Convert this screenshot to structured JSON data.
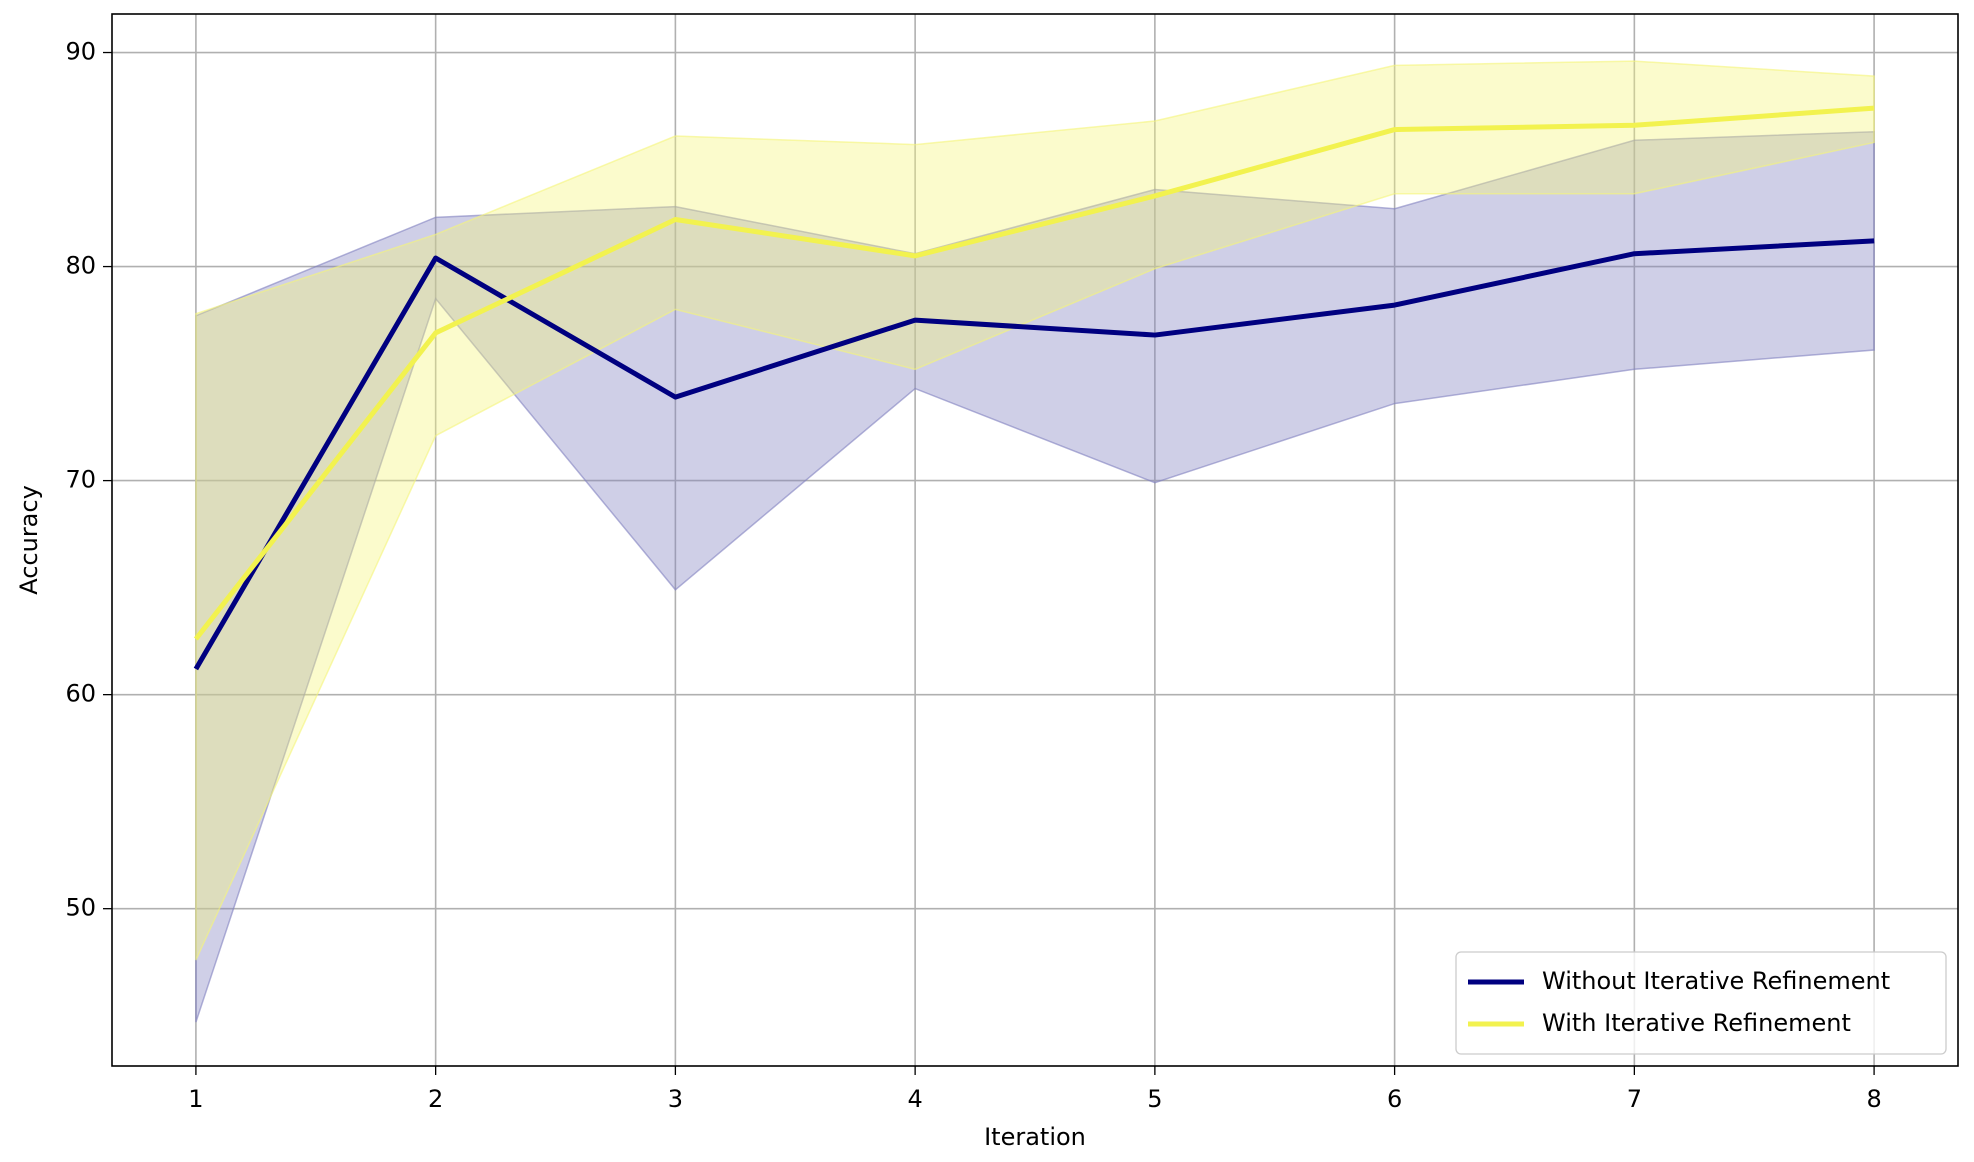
{
  "chart_data": {
    "type": "line",
    "x_label": "Iteration",
    "y_label": "Accuracy",
    "x": [
      1,
      2,
      3,
      4,
      5,
      6,
      7,
      8
    ],
    "xlim": [
      0.65,
      8.35
    ],
    "xticks": [
      1,
      2,
      3,
      4,
      5,
      6,
      7,
      8
    ],
    "ylim": [
      42.65,
      91.8
    ],
    "yticks": [
      50,
      60,
      70,
      80,
      90
    ],
    "grid": true,
    "legend": "lower right",
    "series": [
      {
        "name": "Without Iterative Refinement",
        "color": "#000080",
        "band_color": "#8080c0",
        "values": [
          61.2,
          80.4,
          73.9,
          77.5,
          76.8,
          78.2,
          80.6,
          81.2
        ],
        "lower": [
          44.7,
          78.5,
          64.9,
          74.3,
          69.9,
          73.6,
          75.2,
          76.1
        ],
        "upper": [
          77.7,
          82.3,
          82.8,
          80.6,
          83.6,
          82.7,
          85.9,
          86.3
        ]
      },
      {
        "name": "With Iterative Refinement",
        "color": "#f2f24f",
        "band_color": "#f5f57a",
        "values": [
          62.6,
          76.9,
          82.2,
          80.5,
          83.3,
          86.4,
          86.6,
          87.4
        ],
        "lower": [
          47.6,
          72.1,
          78.0,
          75.2,
          79.9,
          83.4,
          83.4,
          85.8
        ],
        "upper": [
          77.8,
          81.5,
          86.1,
          85.7,
          86.8,
          89.4,
          89.6,
          88.9
        ]
      }
    ]
  }
}
